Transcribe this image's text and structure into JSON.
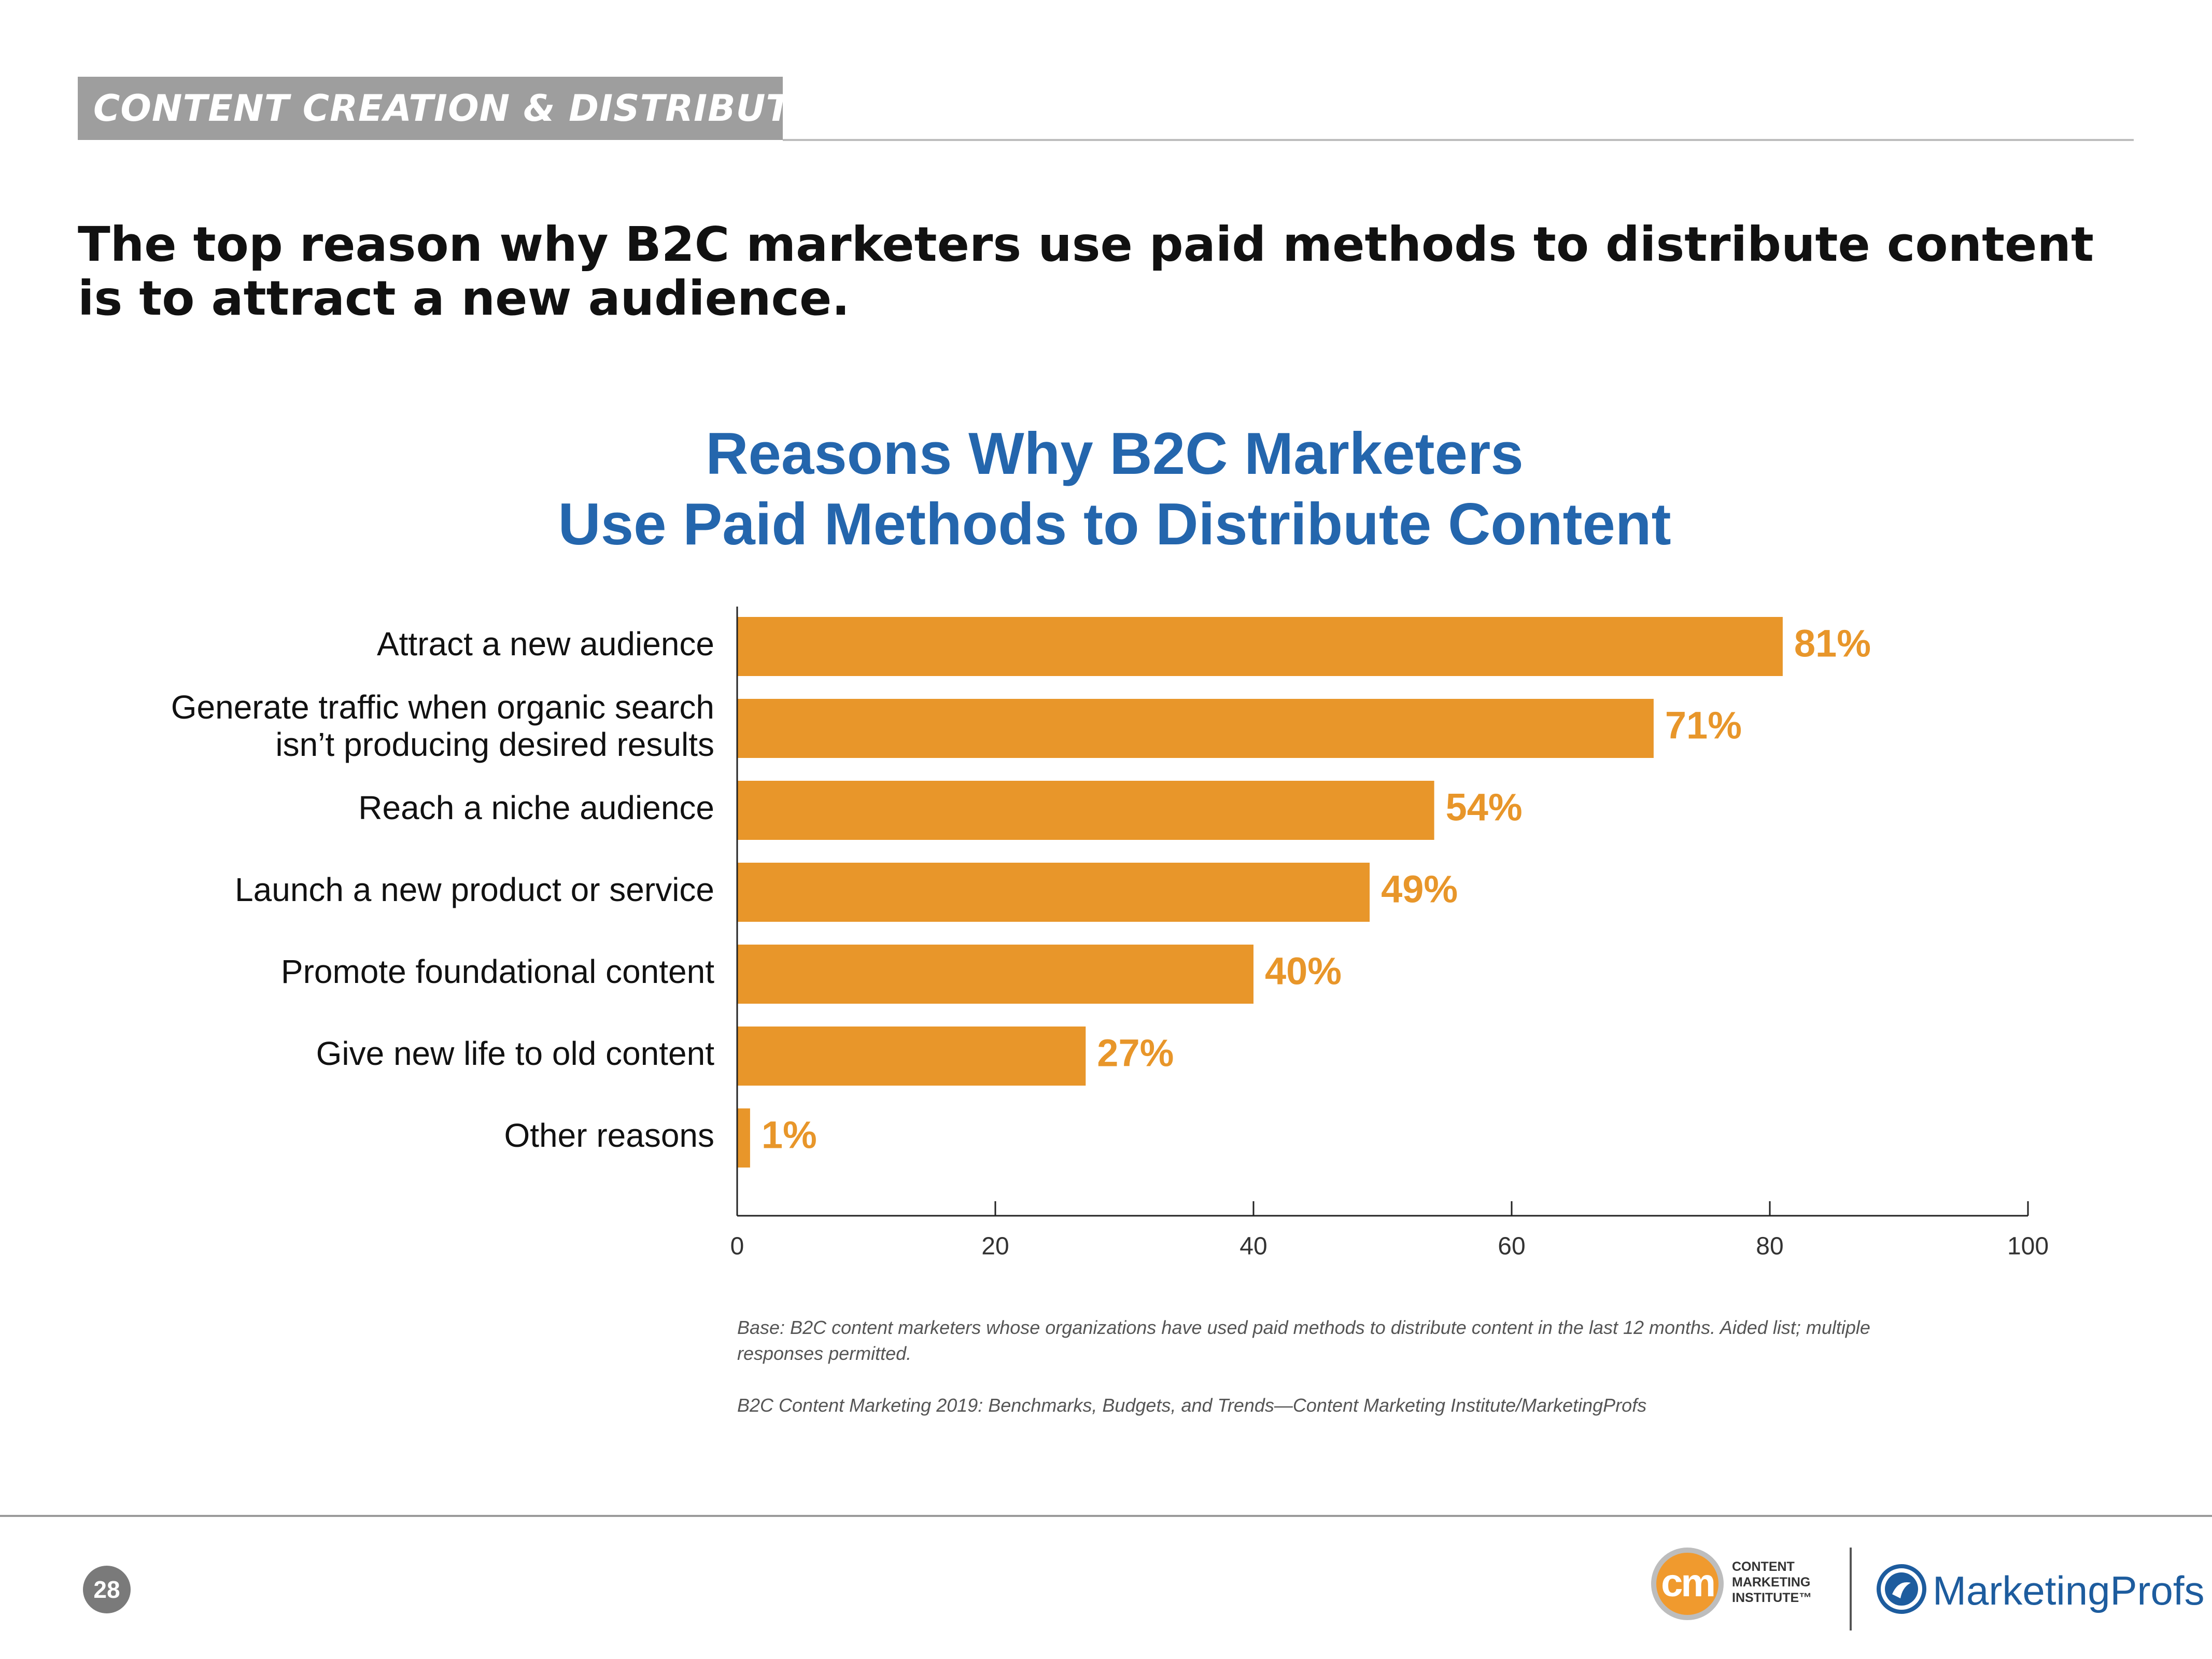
{
  "header": {
    "section": "CONTENT CREATION & DISTRIBUTION",
    "headline": "The top reason why B2C marketers use paid methods to distribute content is to attract a new audience."
  },
  "chart_data": {
    "type": "bar",
    "orientation": "horizontal",
    "title": "Reasons Why B2C Marketers Use Paid Methods to Distribute Content",
    "title_lines": [
      "Reasons Why B2C Marketers",
      "Use Paid Methods to Distribute Content"
    ],
    "categories": [
      "Attract a new audience",
      "Generate traffic when organic search isn’t producing desired results",
      "Reach a niche audience",
      "Launch a new product or service",
      "Promote foundational content",
      "Give new life to old content",
      "Other reasons"
    ],
    "category_lines": [
      [
        "Attract a new audience"
      ],
      [
        "Generate traffic when organic search",
        "isn’t producing desired results"
      ],
      [
        "Reach a niche audience"
      ],
      [
        "Launch a new product or service"
      ],
      [
        "Promote foundational content"
      ],
      [
        "Give new life to old content"
      ],
      [
        "Other reasons"
      ]
    ],
    "values": [
      81,
      71,
      54,
      49,
      40,
      27,
      1
    ],
    "value_labels": [
      "81%",
      "71%",
      "54%",
      "49%",
      "40%",
      "27%",
      "1%"
    ],
    "xlim": [
      0,
      100
    ],
    "xticks": [
      0,
      20,
      40,
      60,
      80,
      100
    ],
    "xtick_labels": [
      "0",
      "20",
      "40",
      "60",
      "80",
      "100"
    ],
    "xlabel": "",
    "ylabel": "",
    "grid": false,
    "bar_color": "#e8962a",
    "label_color": "#e8962a"
  },
  "notes": {
    "base": "Base: B2C content marketers whose organizations have used paid methods to distribute content in the last 12 months. Aided list; multiple responses permitted.",
    "source": "B2C Content Marketing 2019: Benchmarks, Budgets, and Trends—Content Marketing Institute/MarketingProfs"
  },
  "footer": {
    "page_number": "28",
    "cmi_logo_mark": "cm",
    "cmi_logo_lines": [
      "CONTENT",
      "MARKETING",
      "INSTITUTE™"
    ],
    "mp_logo_text": "MarketingProfs"
  },
  "colors": {
    "title_blue": "#2466ad",
    "section_gray": "#9e9e9e",
    "bar_orange": "#e8962a",
    "cmi_orange": "#f09a2e",
    "mp_blue": "#1d5c9e"
  }
}
